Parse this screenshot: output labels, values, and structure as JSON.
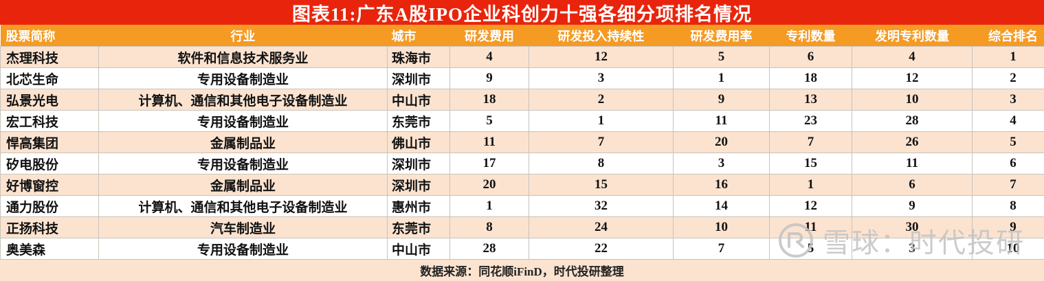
{
  "title": "图表11:广东A股IPO企业科创力十强各细分项排名情况",
  "chart_data": {
    "type": "table",
    "title": "图表11:广东A股IPO企业科创力十强各细分项排名情况",
    "columns": [
      "股票简称",
      "行业",
      "城市",
      "研发费用",
      "研发投入持续性",
      "研发费用率",
      "专利数量",
      "发明专利数量",
      "综合排名"
    ],
    "rows": [
      [
        "杰理科技",
        "软件和信息技术服务业",
        "珠海市",
        "4",
        "12",
        "5",
        "6",
        "4",
        "1"
      ],
      [
        "北芯生命",
        "专用设备制造业",
        "深圳市",
        "9",
        "3",
        "1",
        "18",
        "12",
        "2"
      ],
      [
        "弘景光电",
        "计算机、通信和其他电子设备制造业",
        "中山市",
        "18",
        "2",
        "9",
        "13",
        "10",
        "3"
      ],
      [
        "宏工科技",
        "专用设备制造业",
        "东莞市",
        "5",
        "1",
        "11",
        "23",
        "28",
        "4"
      ],
      [
        "悍高集团",
        "金属制品业",
        "佛山市",
        "11",
        "7",
        "20",
        "7",
        "26",
        "5"
      ],
      [
        "矽电股份",
        "专用设备制造业",
        "深圳市",
        "17",
        "8",
        "3",
        "15",
        "11",
        "6"
      ],
      [
        "好博窗控",
        "金属制品业",
        "深圳市",
        "20",
        "15",
        "16",
        "1",
        "6",
        "7"
      ],
      [
        "通力股份",
        "计算机、通信和其他电子设备制造业",
        "惠州市",
        "1",
        "32",
        "14",
        "12",
        "9",
        "8"
      ],
      [
        "正扬科技",
        "汽车制造业",
        "东莞市",
        "8",
        "24",
        "10",
        "11",
        "30",
        "9"
      ],
      [
        "奥美森",
        "专用设备制造业",
        "中山市",
        "28",
        "22",
        "7",
        "5",
        "3",
        "10"
      ]
    ]
  },
  "source": {
    "text": "数据来源：同花顺iFinD，时代投研整理"
  },
  "watermark": {
    "text": "雪球：时代投研"
  },
  "colors": {
    "title_bg": "#e8250c",
    "title_text": "#ffffff",
    "header_bg": "#f59a23",
    "header_text": "#ffffff",
    "row_alt_bg": "#fbe3d0",
    "row_bg": "#ffffff",
    "footer_bg": "#fbe3d0",
    "cell_text": "#111111",
    "watermark_color": "#c3c3c3"
  }
}
